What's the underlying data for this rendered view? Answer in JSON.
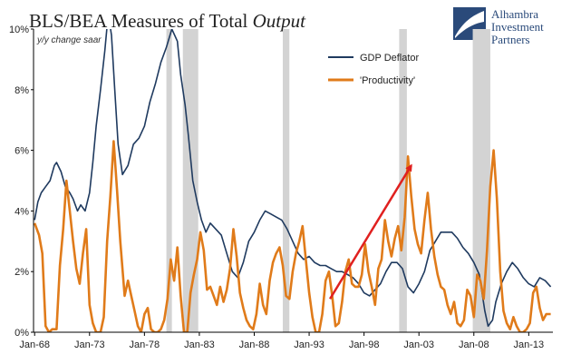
{
  "title": {
    "prefix": "BLS/BEA Measures of Total ",
    "emphasis": "Output"
  },
  "logo": {
    "line1": "Alhambra",
    "line2": "Investment",
    "line3": "Partners"
  },
  "colors": {
    "deflator": "#1f3a5f",
    "productivity": "#e07b1a",
    "recession": "#d3d3d3",
    "arrow": "#e0201f",
    "axis": "#000000",
    "logo_blue": "#2a4a7a"
  },
  "chart_data": {
    "type": "line",
    "ylabel": "y/y change saar",
    "ylim": [
      0,
      10
    ],
    "x_range": [
      1967.9,
      2015.2
    ],
    "yticks": [
      "0%",
      "2%",
      "4%",
      "6%",
      "8%",
      "10%"
    ],
    "ytick_values": [
      0,
      2,
      4,
      6,
      8,
      10
    ],
    "xticks": [
      "Jan-68",
      "Jan-73",
      "Jan-78",
      "Jan-83",
      "Jan-88",
      "Jan-93",
      "Jan-98",
      "Jan-03",
      "Jan-08",
      "Jan-13"
    ],
    "xtick_values": [
      1968,
      1973,
      1978,
      1983,
      1988,
      1993,
      1998,
      2003,
      2008,
      2013
    ],
    "legend_position": "top-right",
    "recessions": [
      [
        1980.0,
        1980.5
      ],
      [
        1981.5,
        1982.9
      ],
      [
        1990.6,
        1991.2
      ],
      [
        2001.2,
        2001.9
      ],
      [
        2007.9,
        2009.5
      ]
    ],
    "series": [
      {
        "name": "GDP Deflator",
        "x": [
          1968.0,
          1968.3,
          1968.6,
          1969.0,
          1969.4,
          1969.8,
          1970.0,
          1970.4,
          1970.8,
          1971.2,
          1971.5,
          1971.9,
          1972.2,
          1972.6,
          1973.0,
          1973.3,
          1973.6,
          1974.0,
          1974.4,
          1974.7,
          1975.0,
          1975.3,
          1975.6,
          1976.0,
          1976.5,
          1977.0,
          1977.5,
          1978.0,
          1978.5,
          1979.0,
          1979.5,
          1980.0,
          1980.5,
          1981.0,
          1981.3,
          1981.7,
          1982.0,
          1982.4,
          1982.8,
          1983.2,
          1983.6,
          1984.0,
          1984.5,
          1985.0,
          1985.5,
          1986.0,
          1986.5,
          1987.0,
          1987.5,
          1988.0,
          1988.5,
          1989.0,
          1989.5,
          1990.0,
          1990.5,
          1991.0,
          1991.5,
          1992.0,
          1992.5,
          1993.0,
          1993.5,
          1994.0,
          1994.5,
          1995.0,
          1995.5,
          1996.0,
          1996.5,
          1997.0,
          1997.5,
          1998.0,
          1998.5,
          1999.0,
          1999.5,
          2000.0,
          2000.5,
          2001.0,
          2001.5,
          2002.0,
          2002.5,
          2003.0,
          2003.5,
          2004.0,
          2004.5,
          2005.0,
          2005.5,
          2006.0,
          2006.5,
          2007.0,
          2007.5,
          2008.0,
          2008.5,
          2009.0,
          2009.3,
          2009.7,
          2010.0,
          2010.5,
          2011.0,
          2011.5,
          2012.0,
          2012.5,
          2013.0,
          2013.5,
          2014.0,
          2014.5,
          2015.0
        ],
        "y": [
          3.7,
          4.3,
          4.6,
          4.8,
          5.0,
          5.5,
          5.6,
          5.3,
          4.8,
          4.6,
          4.4,
          4.0,
          4.2,
          4.0,
          4.6,
          5.6,
          6.8,
          8.0,
          9.3,
          10.5,
          9.8,
          8.0,
          6.2,
          5.2,
          5.5,
          6.2,
          6.4,
          6.8,
          7.6,
          8.2,
          8.9,
          9.4,
          10.0,
          9.6,
          8.5,
          7.5,
          6.5,
          5.0,
          4.3,
          3.7,
          3.3,
          3.6,
          3.4,
          3.2,
          2.6,
          2.0,
          1.8,
          2.3,
          3.0,
          3.3,
          3.7,
          4.0,
          3.9,
          3.8,
          3.7,
          3.4,
          3.0,
          2.6,
          2.4,
          2.5,
          2.3,
          2.2,
          2.2,
          2.1,
          2.0,
          2.0,
          1.9,
          1.8,
          1.6,
          1.3,
          1.2,
          1.4,
          1.6,
          2.0,
          2.3,
          2.3,
          2.1,
          1.5,
          1.3,
          1.6,
          2.0,
          2.7,
          3.0,
          3.3,
          3.3,
          3.3,
          3.1,
          2.8,
          2.6,
          2.3,
          1.9,
          0.7,
          0.2,
          0.4,
          1.0,
          1.6,
          2.0,
          2.3,
          2.1,
          1.8,
          1.6,
          1.5,
          1.8,
          1.7,
          1.5
        ]
      },
      {
        "name": "'Productivity'",
        "x": [
          1968.0,
          1968.4,
          1968.7,
          1969.0,
          1969.3,
          1969.6,
          1970.0,
          1970.3,
          1970.6,
          1970.9,
          1971.2,
          1971.5,
          1971.8,
          1972.1,
          1972.4,
          1972.7,
          1973.0,
          1973.3,
          1973.6,
          1974.0,
          1974.3,
          1974.6,
          1974.9,
          1975.2,
          1975.5,
          1975.8,
          1976.2,
          1976.5,
          1976.8,
          1977.1,
          1977.4,
          1977.7,
          1978.0,
          1978.3,
          1978.6,
          1978.9,
          1979.2,
          1979.5,
          1979.8,
          1980.1,
          1980.4,
          1980.7,
          1981.0,
          1981.3,
          1981.6,
          1981.9,
          1982.2,
          1982.5,
          1982.8,
          1983.1,
          1983.4,
          1983.7,
          1984.0,
          1984.3,
          1984.6,
          1984.9,
          1985.2,
          1985.5,
          1985.8,
          1986.1,
          1986.4,
          1986.7,
          1987.0,
          1987.3,
          1987.6,
          1987.9,
          1988.2,
          1988.5,
          1988.8,
          1989.1,
          1989.4,
          1989.7,
          1990.0,
          1990.3,
          1990.6,
          1990.9,
          1991.2,
          1991.5,
          1991.8,
          1992.1,
          1992.4,
          1992.7,
          1993.0,
          1993.3,
          1993.6,
          1993.9,
          1994.2,
          1994.5,
          1994.8,
          1995.1,
          1995.4,
          1995.7,
          1996.0,
          1996.3,
          1996.6,
          1996.9,
          1997.2,
          1997.5,
          1997.8,
          1998.1,
          1998.4,
          1998.7,
          1999.0,
          1999.3,
          1999.6,
          1999.9,
          2000.2,
          2000.5,
          2000.8,
          2001.1,
          2001.4,
          2001.7,
          2002.0,
          2002.3,
          2002.6,
          2002.9,
          2003.2,
          2003.5,
          2003.8,
          2004.1,
          2004.4,
          2004.7,
          2005.0,
          2005.3,
          2005.6,
          2005.9,
          2006.2,
          2006.5,
          2006.8,
          2007.1,
          2007.4,
          2007.7,
          2008.0,
          2008.3,
          2008.6,
          2008.9,
          2009.2,
          2009.5,
          2009.8,
          2010.1,
          2010.4,
          2010.7,
          2011.0,
          2011.3,
          2011.6,
          2011.9,
          2012.2,
          2012.5,
          2012.8,
          2013.1,
          2013.4,
          2013.7,
          2014.0,
          2014.3,
          2014.6,
          2015.0
        ],
        "y": [
          3.6,
          3.2,
          2.6,
          0.2,
          0.0,
          0.1,
          0.1,
          2.2,
          3.4,
          5.0,
          4.0,
          3.0,
          2.1,
          1.6,
          2.6,
          3.4,
          0.9,
          0.3,
          0.0,
          0.0,
          0.5,
          3.0,
          4.5,
          6.3,
          4.7,
          3.0,
          1.2,
          1.7,
          1.2,
          0.7,
          0.2,
          0.0,
          0.6,
          0.8,
          0.1,
          0.0,
          0.0,
          0.1,
          0.4,
          1.1,
          2.4,
          1.7,
          2.8,
          1.2,
          0.0,
          0.0,
          1.3,
          1.9,
          2.4,
          3.3,
          2.7,
          1.4,
          1.5,
          1.2,
          0.9,
          1.5,
          1.0,
          1.4,
          2.1,
          3.4,
          2.5,
          1.3,
          0.8,
          0.4,
          0.2,
          0.1,
          0.6,
          1.6,
          0.9,
          0.6,
          1.7,
          2.3,
          2.6,
          2.8,
          2.2,
          1.2,
          1.1,
          2.0,
          2.6,
          3.0,
          3.5,
          2.4,
          1.3,
          0.5,
          0.0,
          0.0,
          0.6,
          1.7,
          2.0,
          1.2,
          0.2,
          0.3,
          1.0,
          2.0,
          2.4,
          1.6,
          1.5,
          1.5,
          1.9,
          2.9,
          2.0,
          1.5,
          0.9,
          2.1,
          2.4,
          3.7,
          3.0,
          2.5,
          3.1,
          3.5,
          2.7,
          3.8,
          5.8,
          4.5,
          3.4,
          2.9,
          2.6,
          3.7,
          4.6,
          3.4,
          2.5,
          1.9,
          1.5,
          1.4,
          0.9,
          0.6,
          1.0,
          0.3,
          0.2,
          0.4,
          1.4,
          1.2,
          0.5,
          1.9,
          1.7,
          1.1,
          2.7,
          4.8,
          6.0,
          4.4,
          2.0,
          0.7,
          0.3,
          0.1,
          0.5,
          0.2,
          0.0,
          0.0,
          0.1,
          0.3,
          1.3,
          1.5,
          0.8,
          0.4,
          0.6,
          0.6
        ]
      }
    ],
    "annotations": [
      {
        "type": "arrow",
        "from": [
          1994.9,
          1.1
        ],
        "to": [
          2002.3,
          5.5
        ]
      }
    ]
  }
}
